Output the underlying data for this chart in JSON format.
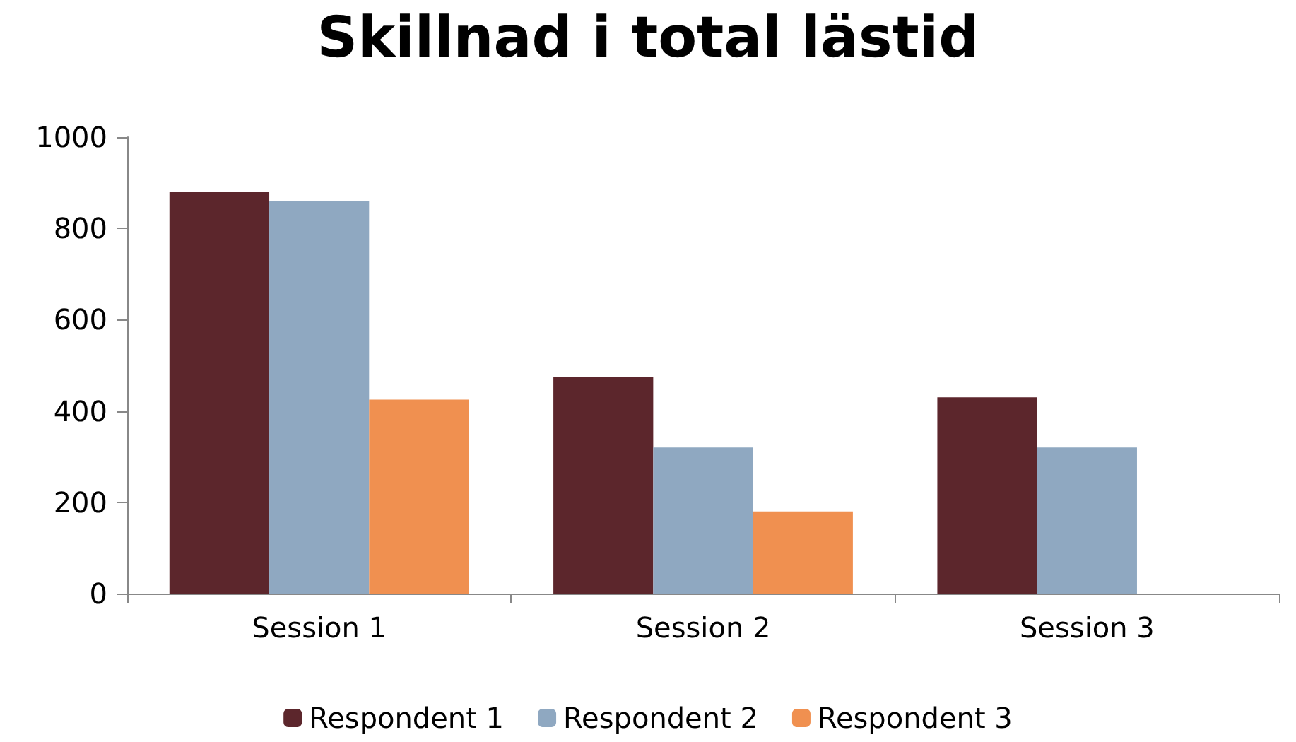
{
  "chart_data": {
    "type": "bar",
    "title": "Skillnad i total lästid",
    "categories": [
      "Session 1",
      "Session 2",
      "Session 3"
    ],
    "series": [
      {
        "name": "Respondent 1",
        "color": "#5c262c",
        "values": [
          880,
          475,
          430
        ]
      },
      {
        "name": "Respondent 2",
        "color": "#8fa8c1",
        "values": [
          860,
          320,
          320
        ]
      },
      {
        "name": "Respondent 3",
        "color": "#f09050",
        "values": [
          425,
          180,
          null
        ]
      }
    ],
    "ylim": [
      0,
      1000
    ],
    "yticks": [
      0,
      200,
      400,
      600,
      800,
      1000
    ],
    "grid": false,
    "legend": "bottom"
  }
}
